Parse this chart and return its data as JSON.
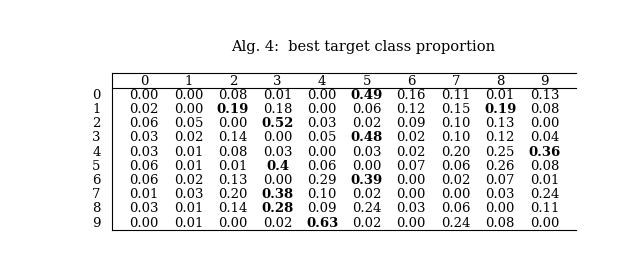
{
  "title": "Alg. 4:  best target class proportion",
  "col_headers": [
    "0",
    "1",
    "2",
    "3",
    "4",
    "5",
    "6",
    "7",
    "8",
    "9"
  ],
  "row_headers": [
    "0",
    "1",
    "2",
    "3",
    "4",
    "5",
    "6",
    "7",
    "8",
    "9"
  ],
  "table": [
    [
      "0.00",
      "0.00",
      "0.08",
      "0.01",
      "0.00",
      "0.49",
      "0.16",
      "0.11",
      "0.01",
      "0.13"
    ],
    [
      "0.02",
      "0.00",
      "0.19",
      "0.18",
      "0.00",
      "0.06",
      "0.12",
      "0.15",
      "0.19",
      "0.08"
    ],
    [
      "0.06",
      "0.05",
      "0.00",
      "0.52",
      "0.03",
      "0.02",
      "0.09",
      "0.10",
      "0.13",
      "0.00"
    ],
    [
      "0.03",
      "0.02",
      "0.14",
      "0.00",
      "0.05",
      "0.48",
      "0.02",
      "0.10",
      "0.12",
      "0.04"
    ],
    [
      "0.03",
      "0.01",
      "0.08",
      "0.03",
      "0.00",
      "0.03",
      "0.02",
      "0.20",
      "0.25",
      "0.36"
    ],
    [
      "0.06",
      "0.01",
      "0.01",
      "0.4",
      "0.06",
      "0.00",
      "0.07",
      "0.06",
      "0.26",
      "0.08"
    ],
    [
      "0.06",
      "0.02",
      "0.13",
      "0.00",
      "0.29",
      "0.39",
      "0.00",
      "0.02",
      "0.07",
      "0.01"
    ],
    [
      "0.01",
      "0.03",
      "0.20",
      "0.38",
      "0.10",
      "0.02",
      "0.00",
      "0.00",
      "0.03",
      "0.24"
    ],
    [
      "0.03",
      "0.01",
      "0.14",
      "0.28",
      "0.09",
      "0.24",
      "0.03",
      "0.06",
      "0.00",
      "0.11"
    ],
    [
      "0.00",
      "0.01",
      "0.00",
      "0.02",
      "0.63",
      "0.02",
      "0.00",
      "0.24",
      "0.08",
      "0.00"
    ]
  ],
  "bold": [
    [
      5
    ],
    [
      2,
      8
    ],
    [
      3
    ],
    [
      5
    ],
    [
      9
    ],
    [
      3
    ],
    [
      5
    ],
    [
      3
    ],
    [
      3
    ],
    [
      4
    ]
  ],
  "background_color": "#ffffff",
  "title_fontsize": 10.5,
  "cell_fontsize": 9.5
}
